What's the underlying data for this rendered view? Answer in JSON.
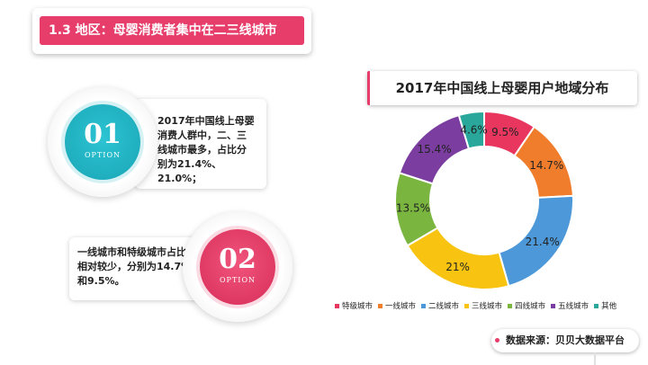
{
  "header": {
    "title": "1.3 地区：母婴消费者集中在二三线城市"
  },
  "notes": [
    {
      "number": "01",
      "sub": "OPTION",
      "lines": [
        "2017年中国线上母婴",
        "消费人群中，二、三",
        "线城市最多，占比分",
        "别为21.4%、21.0%；"
      ],
      "color": "#1ab3c3"
    },
    {
      "number": "02",
      "sub": "OPTION",
      "lines": [
        "一线城市和特级城市占比",
        "相对较少，分别为14.7%",
        "和9.5%。"
      ],
      "color": "#e63d6a"
    }
  ],
  "chart_data": {
    "type": "pie",
    "title": "2017年中国线上母婴用户地域分布",
    "donut": true,
    "categories": [
      "特级城市",
      "一线城市",
      "二线城市",
      "三线城市",
      "四线城市",
      "五线城市",
      "其他"
    ],
    "values": [
      9.5,
      14.7,
      21.4,
      21.0,
      13.5,
      15.4,
      4.6
    ],
    "data_labels": [
      "9.5%",
      "14.7%",
      "21.4%",
      "21%",
      "13.5%",
      "15.4%",
      "4.6%"
    ],
    "colors": [
      "#e8365f",
      "#ef7d2c",
      "#4d98d8",
      "#f8c411",
      "#7ab63f",
      "#7b3ea0",
      "#29a79a"
    ],
    "legend_position": "bottom"
  },
  "source": {
    "label": "数据来源：贝贝大数据平台"
  }
}
